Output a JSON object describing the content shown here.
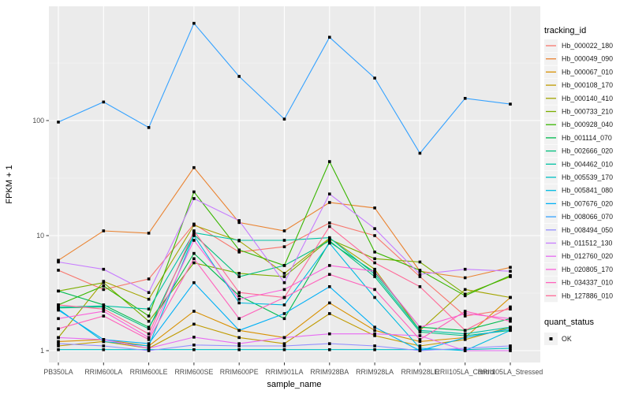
{
  "figure": {
    "background": "#ffffff",
    "panel_background": "#ebebeb",
    "grid_color": "#ffffff",
    "axis_text_color": "#4d4d4d",
    "marker_color": "#000000",
    "legend_key_background": "#f2f2f2"
  },
  "chart_data": {
    "type": "line",
    "title": "",
    "xlabel": "sample_name",
    "ylabel": "FPKM + 1",
    "y_scale": "log10",
    "y_ticks": [
      1,
      10,
      100
    ],
    "y_tick_labels": [
      "1",
      "10",
      "100"
    ],
    "y_minor_gridlines": [
      3.162,
      31.62,
      316.2
    ],
    "ylim": [
      0.79,
      1000
    ],
    "grid": true,
    "points": "black squares at every observation",
    "legend_position": "right",
    "legend_title": "tracking_id",
    "legend2_title": "quant_status",
    "legend2_items": [
      {
        "label": "OK",
        "marker": "black-square"
      }
    ],
    "categories": [
      "PB350LA",
      "RRIM600LA",
      "RRIM600LE",
      "RRIM600SE",
      "RRIM600PE",
      "RRIM901LA",
      "RRIM928BA",
      "RRIM928LA",
      "RRIM928LE",
      "RRII105LA_Control",
      "RRII105LA_Stressed"
    ],
    "series": [
      {
        "name": "Hb_000022_180",
        "color": "#F8766D",
        "values": [
          5.0,
          3.4,
          4.2,
          12.6,
          7.2,
          8.0,
          12.9,
          10.0,
          4.4,
          2.0,
          2.3
        ]
      },
      {
        "name": "Hb_000049_090",
        "color": "#EA8331",
        "values": [
          6.1,
          11.0,
          10.5,
          39.0,
          13.0,
          11.0,
          19.4,
          17.4,
          4.9,
          4.3,
          5.3
        ]
      },
      {
        "name": "Hb_000067_010",
        "color": "#D89000",
        "values": [
          1.2,
          1.25,
          1.1,
          2.2,
          1.5,
          1.3,
          2.6,
          1.5,
          1.2,
          1.3,
          2.9
        ]
      },
      {
        "name": "Hb_000108_170",
        "color": "#C09B00",
        "values": [
          1.1,
          1.2,
          1.05,
          1.7,
          1.3,
          1.15,
          2.1,
          1.35,
          1.1,
          1.25,
          1.6
        ]
      },
      {
        "name": "Hb_000140_410",
        "color": "#A3A500",
        "values": [
          1.3,
          4.0,
          2.8,
          12.3,
          9.0,
          4.7,
          9.5,
          5.1,
          1.5,
          3.4,
          2.9
        ]
      },
      {
        "name": "Hb_000733_210",
        "color": "#7CAE00",
        "values": [
          3.3,
          3.9,
          1.8,
          5.8,
          4.7,
          4.4,
          9.3,
          6.3,
          5.9,
          3.1,
          4.4
        ]
      },
      {
        "name": "Hb_000928_040",
        "color": "#39B600",
        "values": [
          2.5,
          3.65,
          2.0,
          24.0,
          7.5,
          5.5,
          44.0,
          7.2,
          5.0,
          3.0,
          4.5
        ]
      },
      {
        "name": "Hb_001114_070",
        "color": "#00BB4E",
        "values": [
          3.3,
          2.5,
          1.6,
          7.0,
          3.0,
          1.9,
          8.8,
          4.8,
          1.6,
          1.5,
          1.9
        ]
      },
      {
        "name": "Hb_002666_020",
        "color": "#00BF7D",
        "values": [
          2.35,
          2.4,
          1.55,
          10.2,
          4.4,
          5.5,
          9.0,
          4.4,
          1.45,
          1.35,
          1.5
        ]
      },
      {
        "name": "Hb_004462_010",
        "color": "#00C1A3",
        "values": [
          2.4,
          2.45,
          2.3,
          10.6,
          9.1,
          9.1,
          9.6,
          4.6,
          1.5,
          1.4,
          1.6
        ]
      },
      {
        "name": "Hb_005539_170",
        "color": "#00BFC4",
        "values": [
          1.02,
          1.02,
          1.02,
          1.02,
          1.02,
          1.02,
          1.02,
          1.02,
          1.02,
          1.02,
          1.05
        ]
      },
      {
        "name": "Hb_005841_080",
        "color": "#00BAE0",
        "values": [
          2.3,
          1.2,
          1.1,
          10.0,
          2.6,
          2.5,
          8.6,
          2.9,
          1.05,
          1.0,
          1.5
        ]
      },
      {
        "name": "Hb_007676_020",
        "color": "#00B0F6",
        "values": [
          2.25,
          1.25,
          1.15,
          3.9,
          1.5,
          2.1,
          3.6,
          1.6,
          1.0,
          1.3,
          1.55
        ]
      },
      {
        "name": "Hb_008066_070",
        "color": "#35A2FF",
        "values": [
          97,
          145,
          87,
          700,
          242,
          103,
          530,
          234,
          52,
          156,
          139
        ]
      },
      {
        "name": "Hb_008494_050",
        "color": "#9590FF",
        "values": [
          1.15,
          1.1,
          1.0,
          1.12,
          1.1,
          1.1,
          1.15,
          1.1,
          1.0,
          1.05,
          1.1
        ]
      },
      {
        "name": "Hb_011512_130",
        "color": "#C77CFF",
        "values": [
          5.9,
          5.1,
          3.2,
          21.0,
          13.5,
          3.9,
          23.0,
          11.5,
          4.6,
          5.1,
          4.9
        ]
      },
      {
        "name": "Hb_012760_020",
        "color": "#E76BF3",
        "values": [
          1.3,
          1.25,
          1.05,
          1.31,
          1.15,
          1.3,
          1.4,
          1.4,
          1.35,
          1.0,
          1.0
        ]
      },
      {
        "name": "Hb_020805_170",
        "color": "#FA62DB",
        "values": [
          1.9,
          2.2,
          1.3,
          9.1,
          2.8,
          3.4,
          5.5,
          4.9,
          1.6,
          2.1,
          1.9
        ]
      },
      {
        "name": "Hb_034337_010",
        "color": "#FF62BC",
        "values": [
          1.55,
          2.0,
          1.25,
          6.3,
          1.9,
          2.9,
          4.6,
          3.4,
          1.25,
          2.2,
          1.8
        ]
      },
      {
        "name": "Hb_127886_010",
        "color": "#FF6A98",
        "values": [
          2.5,
          2.3,
          1.4,
          11.0,
          3.2,
          2.9,
          12.0,
          5.8,
          3.6,
          1.5,
          2.4
        ]
      }
    ]
  }
}
